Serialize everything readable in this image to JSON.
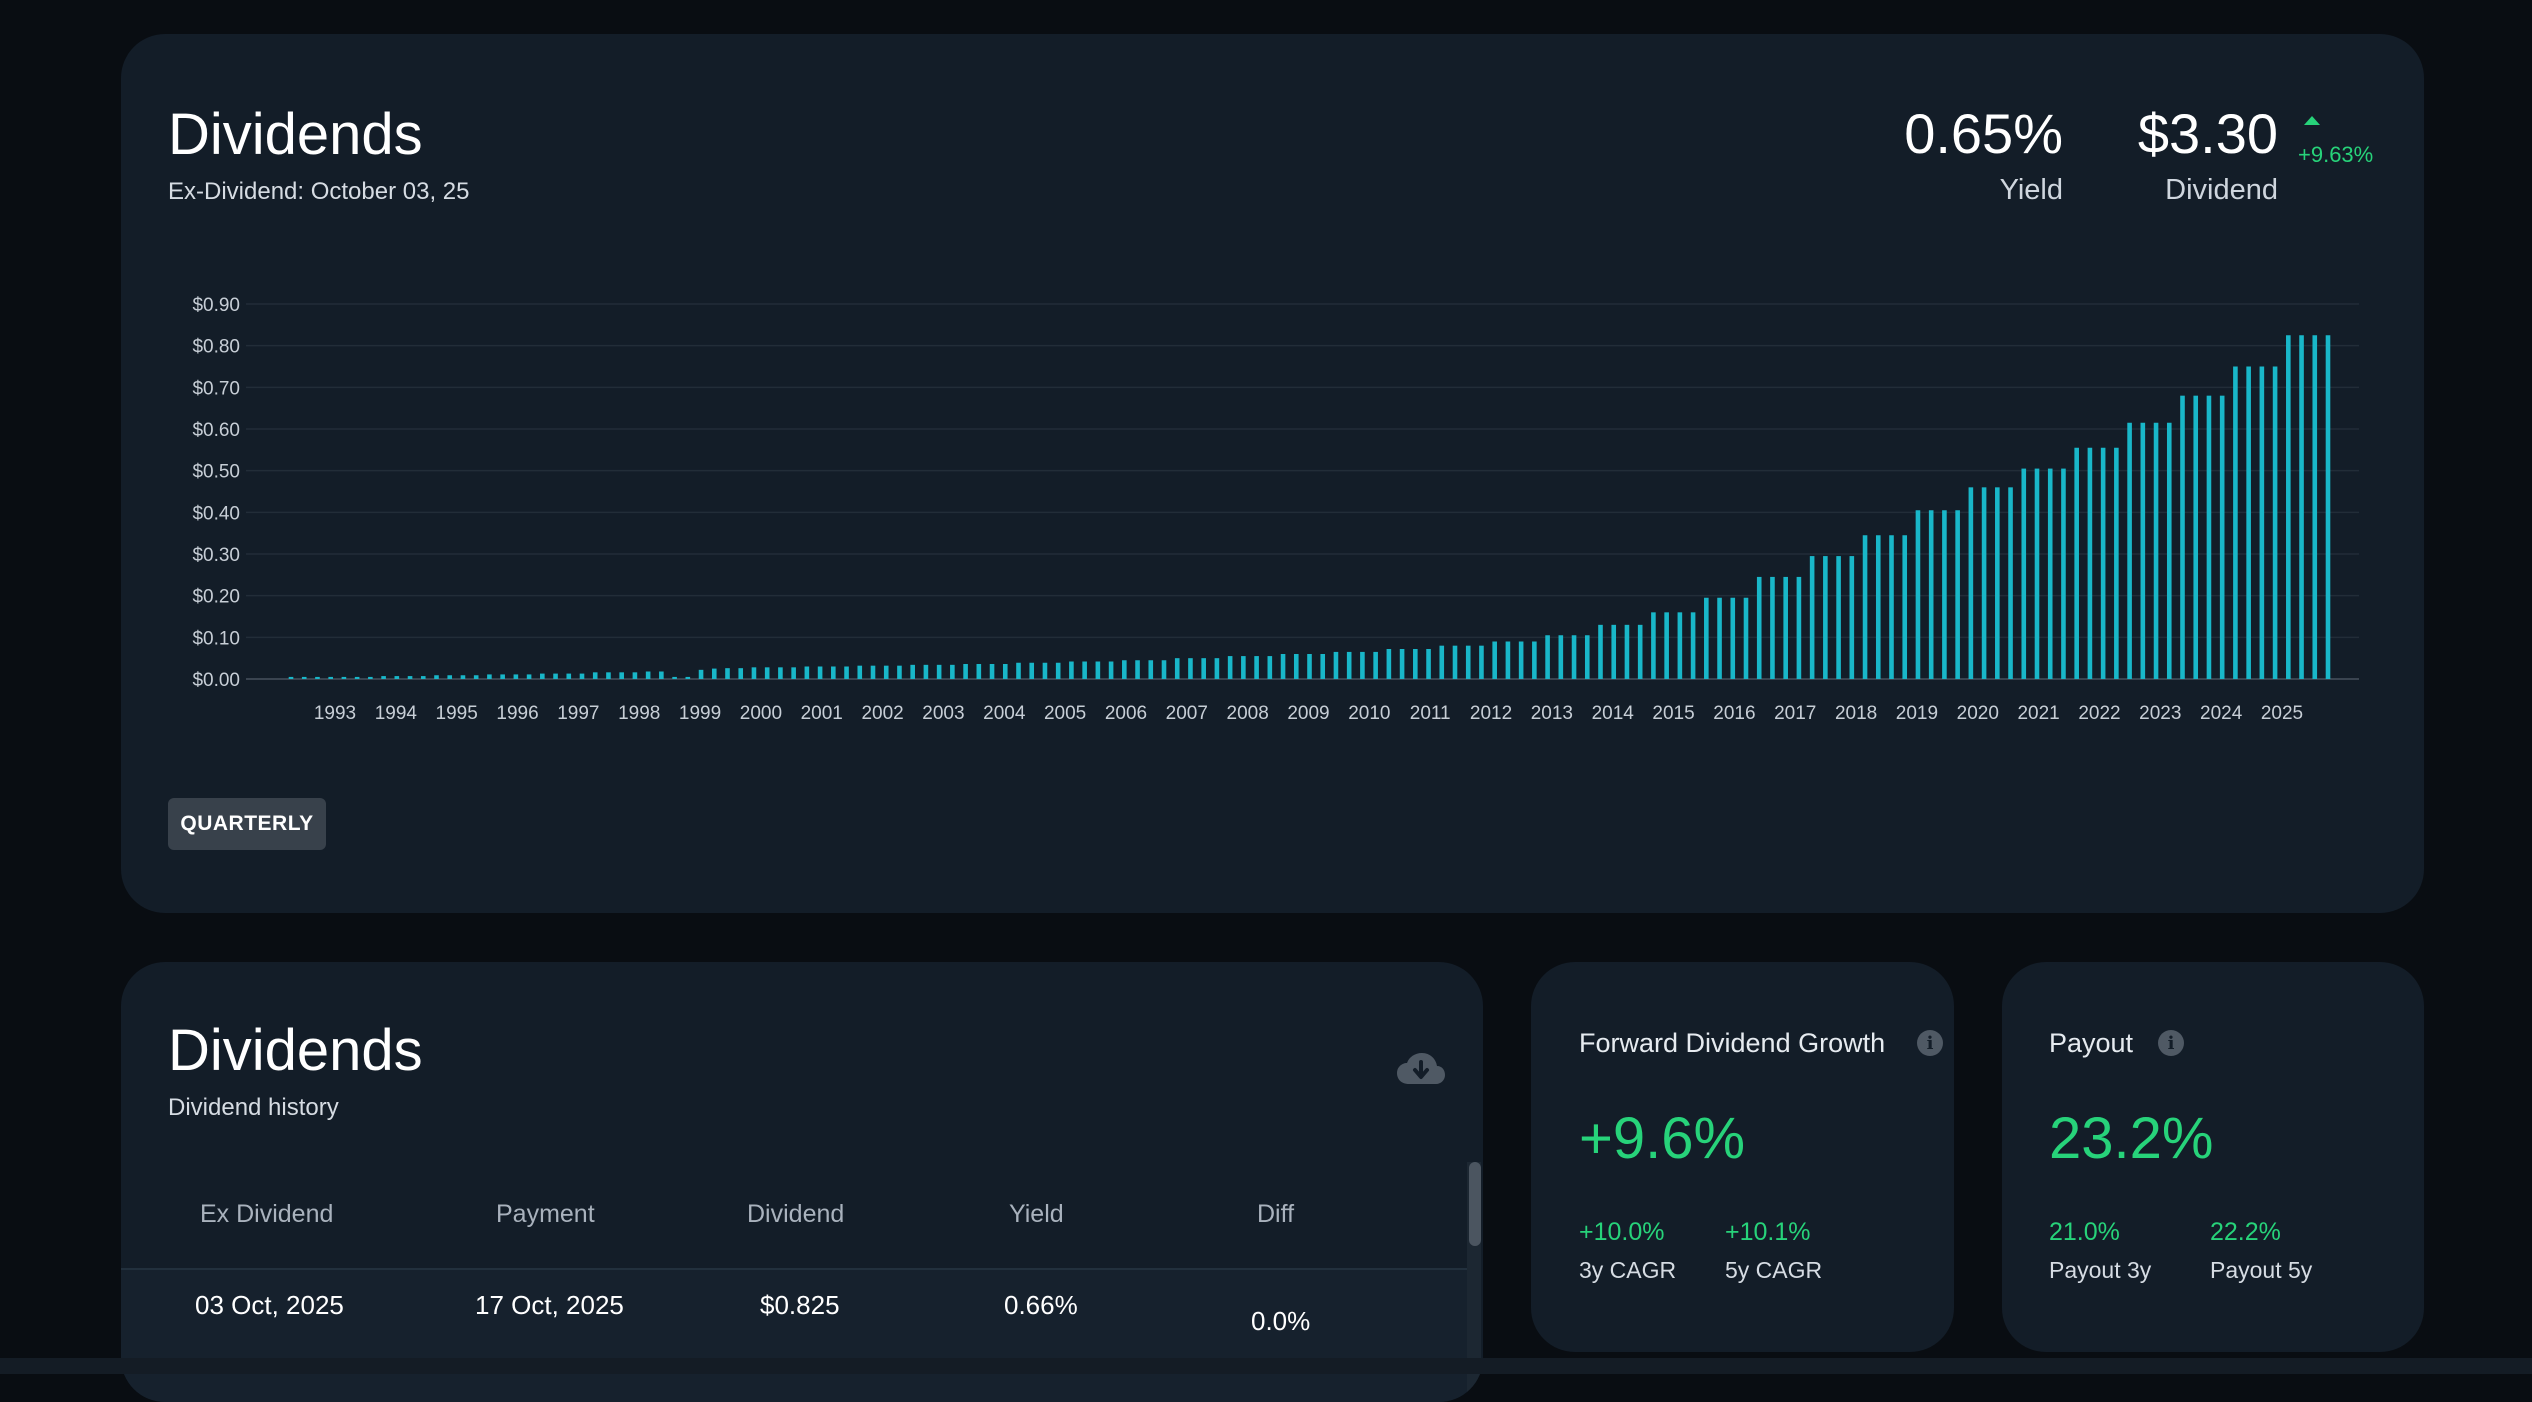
{
  "summary": {
    "title": "Dividends",
    "ex_dividend": "Ex-Dividend: October 03, 25",
    "yield_value": "0.65%",
    "yield_label": "Yield",
    "dividend_value": "$3.30",
    "dividend_label": "Dividend",
    "dividend_change": "+9.63%",
    "frequency_button": "QUARTERLY"
  },
  "chart_data": {
    "type": "bar",
    "title": "",
    "xlabel": "",
    "ylabel": "",
    "ylim": [
      0,
      0.9
    ],
    "y_ticks": [
      "$0.00",
      "$0.10",
      "$0.20",
      "$0.30",
      "$0.40",
      "$0.50",
      "$0.60",
      "$0.70",
      "$0.80",
      "$0.90"
    ],
    "x_tick_labels": [
      "1993",
      "1994",
      "1995",
      "1996",
      "1997",
      "1998",
      "1999",
      "2000",
      "2001",
      "2002",
      "2003",
      "2004",
      "2005",
      "2006",
      "2007",
      "2008",
      "2009",
      "2010",
      "2011",
      "2012",
      "2013",
      "2014",
      "2015",
      "2016",
      "2017",
      "2018",
      "2019",
      "2020",
      "2021",
      "2022",
      "2023",
      "2024",
      "2025"
    ],
    "grid": true,
    "color": "#19b7c9",
    "series": [
      {
        "values": [
          0.005,
          0.005,
          0.005,
          0.005,
          0.005,
          0.005,
          0.005,
          0.007,
          0.007,
          0.007,
          0.007,
          0.009,
          0.009,
          0.009,
          0.009,
          0.011,
          0.011,
          0.011,
          0.011,
          0.013,
          0.013,
          0.013,
          0.013,
          0.016,
          0.016,
          0.016,
          0.016,
          0.018,
          0.018,
          0.005,
          0.005,
          0.022,
          0.025,
          0.026,
          0.026,
          0.028,
          0.028,
          0.028,
          0.028,
          0.03,
          0.03,
          0.03,
          0.03,
          0.032,
          0.032,
          0.032,
          0.032,
          0.034,
          0.034,
          0.034,
          0.034,
          0.036,
          0.036,
          0.036,
          0.036,
          0.039,
          0.039,
          0.039,
          0.039,
          0.042,
          0.042,
          0.042,
          0.042,
          0.045,
          0.045,
          0.045,
          0.045,
          0.05,
          0.05,
          0.05,
          0.05,
          0.055,
          0.055,
          0.055,
          0.055,
          0.06,
          0.06,
          0.06,
          0.06,
          0.065,
          0.065,
          0.065,
          0.065,
          0.072,
          0.072,
          0.072,
          0.072,
          0.08,
          0.08,
          0.08,
          0.08,
          0.09,
          0.09,
          0.09,
          0.09,
          0.105,
          0.105,
          0.105,
          0.105,
          0.13,
          0.13,
          0.13,
          0.13,
          0.16,
          0.16,
          0.16,
          0.16,
          0.195,
          0.195,
          0.195,
          0.195,
          0.245,
          0.245,
          0.245,
          0.245,
          0.295,
          0.295,
          0.295,
          0.295,
          0.345,
          0.345,
          0.345,
          0.345,
          0.405,
          0.405,
          0.405,
          0.405,
          0.46,
          0.46,
          0.46,
          0.46,
          0.505,
          0.505,
          0.505,
          0.505,
          0.555,
          0.555,
          0.555,
          0.555,
          0.615,
          0.615,
          0.615,
          0.615,
          0.68,
          0.68,
          0.68,
          0.68,
          0.75,
          0.75,
          0.75,
          0.75,
          0.825,
          0.825,
          0.825,
          0.825
        ]
      }
    ]
  },
  "history": {
    "title": "Dividends",
    "subtitle": "Dividend history",
    "download_icon": "cloud-download-icon",
    "columns": [
      "Ex Dividend",
      "Payment",
      "Dividend",
      "Yield",
      "Diff"
    ],
    "rows": [
      {
        "ex_dividend": "03 Oct, 2025",
        "payment": "17 Oct, 2025",
        "dividend": "$0.825",
        "yield": "0.66%",
        "diff": "0.0%"
      }
    ]
  },
  "growth": {
    "label": "Forward Dividend Growth",
    "value": "+9.6%",
    "cagr3_value": "+10.0%",
    "cagr3_label": "3y CAGR",
    "cagr5_value": "+10.1%",
    "cagr5_label": "5y CAGR"
  },
  "payout": {
    "label": "Payout",
    "value": "23.2%",
    "p3_value": "21.0%",
    "p3_label": "Payout 3y",
    "p5_value": "22.2%",
    "p5_label": "Payout 5y"
  }
}
